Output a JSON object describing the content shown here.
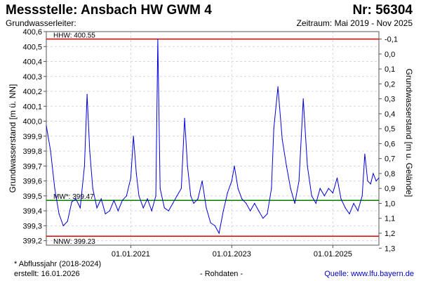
{
  "header": {
    "title": "Messstelle: Ansbach HW GWM 4",
    "number": "Nr: 56304",
    "aquifer": "Grundwasserleiter:",
    "period": "Zeitraum: Mai 2019 - Nov 2025"
  },
  "footer": {
    "note": "* Abflussjahr (2018-2024)",
    "created": "erstellt:  16.01.2026",
    "rawdata": "- Rohdaten -",
    "source_label": "Quelle:",
    "source_link": "www.lfu.bayern.de"
  },
  "chart_data": {
    "type": "line",
    "ylabel": "Grundwasserstand [m ü. NN]",
    "ylabel_right": "Grundwasserstand [m u. Gelände]",
    "ylim": [
      399.17,
      400.6
    ],
    "yticks": [
      399.2,
      399.3,
      399.4,
      399.5,
      399.6,
      399.7,
      399.8,
      399.9,
      400.0,
      400.1,
      400.2,
      400.3,
      400.4,
      400.5,
      400.6
    ],
    "yticks_right": [
      "-0,1",
      "0,0",
      "0,1",
      "0,2",
      "0,3",
      "0,4",
      "0,5",
      "0,6",
      "0,7",
      "0,8",
      "0,9",
      "1,0",
      "1,1",
      "1,2",
      "1,3"
    ],
    "right_axis_reference": 400.45,
    "xlim": [
      "2019-05-01",
      "2025-11-30"
    ],
    "xticks": [
      "01.01.2021",
      "01.01.2023",
      "01.01.2025"
    ],
    "xtick_dates": [
      "2021-01-01",
      "2023-01-01",
      "2025-01-01"
    ],
    "grid": true,
    "decimal_comma": true,
    "reference_lines": [
      {
        "label": "HHW: 400.55",
        "value": 400.55,
        "color": "#e00000"
      },
      {
        "label": "MW*: 399.47",
        "value": 399.47,
        "color": "#008000"
      },
      {
        "label": "NNW: 399.23",
        "value": 399.23,
        "color": "#e00000"
      }
    ],
    "series": [
      {
        "color": "#0000dd",
        "points": [
          [
            "2019-05-01",
            399.97
          ],
          [
            "2019-06-01",
            399.8
          ],
          [
            "2019-07-01",
            399.55
          ],
          [
            "2019-08-01",
            399.38
          ],
          [
            "2019-09-01",
            399.3
          ],
          [
            "2019-10-01",
            399.33
          ],
          [
            "2019-11-01",
            399.46
          ],
          [
            "2019-12-01",
            399.48
          ],
          [
            "2020-01-01",
            399.42
          ],
          [
            "2020-02-01",
            399.7
          ],
          [
            "2020-02-20",
            400.18
          ],
          [
            "2020-03-10",
            399.8
          ],
          [
            "2020-04-01",
            399.55
          ],
          [
            "2020-05-01",
            399.42
          ],
          [
            "2020-06-01",
            399.48
          ],
          [
            "2020-07-01",
            399.38
          ],
          [
            "2020-08-01",
            399.4
          ],
          [
            "2020-09-01",
            399.47
          ],
          [
            "2020-10-01",
            399.4
          ],
          [
            "2020-11-01",
            399.47
          ],
          [
            "2020-12-01",
            399.5
          ],
          [
            "2021-01-01",
            399.62
          ],
          [
            "2021-01-20",
            399.9
          ],
          [
            "2021-02-10",
            399.65
          ],
          [
            "2021-03-01",
            399.5
          ],
          [
            "2021-04-01",
            399.42
          ],
          [
            "2021-05-01",
            399.48
          ],
          [
            "2021-06-01",
            399.4
          ],
          [
            "2021-07-01",
            399.5
          ],
          [
            "2021-07-15",
            400.55
          ],
          [
            "2021-08-01",
            399.55
          ],
          [
            "2021-09-01",
            399.42
          ],
          [
            "2021-10-01",
            399.4
          ],
          [
            "2021-11-01",
            399.45
          ],
          [
            "2021-12-01",
            399.5
          ],
          [
            "2022-01-01",
            399.55
          ],
          [
            "2022-01-25",
            400.02
          ],
          [
            "2022-02-15",
            399.7
          ],
          [
            "2022-03-10",
            399.5
          ],
          [
            "2022-04-01",
            399.45
          ],
          [
            "2022-05-01",
            399.48
          ],
          [
            "2022-06-01",
            399.6
          ],
          [
            "2022-07-01",
            399.42
          ],
          [
            "2022-08-01",
            399.32
          ],
          [
            "2022-09-01",
            399.3
          ],
          [
            "2022-10-01",
            399.25
          ],
          [
            "2022-11-01",
            399.4
          ],
          [
            "2022-12-01",
            399.52
          ],
          [
            "2023-01-01",
            399.6
          ],
          [
            "2023-01-20",
            399.7
          ],
          [
            "2023-02-15",
            399.55
          ],
          [
            "2023-03-15",
            399.48
          ],
          [
            "2023-04-15",
            399.45
          ],
          [
            "2023-05-15",
            399.4
          ],
          [
            "2023-06-15",
            399.45
          ],
          [
            "2023-07-15",
            399.4
          ],
          [
            "2023-08-15",
            399.35
          ],
          [
            "2023-09-15",
            399.38
          ],
          [
            "2023-10-15",
            399.55
          ],
          [
            "2023-11-01",
            399.95
          ],
          [
            "2023-12-01",
            400.23
          ],
          [
            "2024-01-01",
            399.88
          ],
          [
            "2024-02-01",
            399.7
          ],
          [
            "2024-03-01",
            399.55
          ],
          [
            "2024-04-01",
            399.45
          ],
          [
            "2024-05-01",
            399.6
          ],
          [
            "2024-06-01",
            400.15
          ],
          [
            "2024-07-01",
            399.7
          ],
          [
            "2024-08-01",
            399.5
          ],
          [
            "2024-09-01",
            399.45
          ],
          [
            "2024-10-01",
            399.55
          ],
          [
            "2024-11-01",
            399.5
          ],
          [
            "2024-12-01",
            399.55
          ],
          [
            "2025-01-01",
            399.52
          ],
          [
            "2025-02-01",
            399.62
          ],
          [
            "2025-03-01",
            399.48
          ],
          [
            "2025-04-01",
            399.42
          ],
          [
            "2025-05-01",
            399.38
          ],
          [
            "2025-06-01",
            399.45
          ],
          [
            "2025-07-01",
            399.4
          ],
          [
            "2025-08-01",
            399.5
          ],
          [
            "2025-08-20",
            399.78
          ],
          [
            "2025-09-10",
            399.6
          ],
          [
            "2025-10-01",
            399.58
          ],
          [
            "2025-10-20",
            399.65
          ],
          [
            "2025-11-10",
            399.6
          ],
          [
            "2025-11-30",
            399.62
          ]
        ]
      }
    ]
  }
}
